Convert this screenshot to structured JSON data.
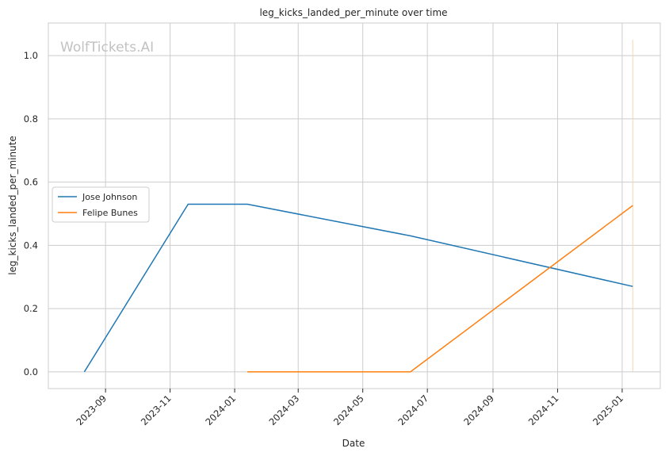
{
  "chart_data": {
    "type": "line",
    "title": "leg_kicks_landed_per_minute over time",
    "xlabel": "Date",
    "ylabel": "leg_kicks_landed_per_minute",
    "watermark": "WolfTickets.AI",
    "x_range": [
      "2023-07-09",
      "2025-02-06"
    ],
    "ylim": [
      -0.053,
      1.103
    ],
    "x_ticks": [
      "2023-09",
      "2023-11",
      "2024-01",
      "2024-03",
      "2024-05",
      "2024-07",
      "2024-09",
      "2024-11",
      "2025-01"
    ],
    "y_ticks": [
      "0.0",
      "0.2",
      "0.4",
      "0.6",
      "0.8",
      "1.0"
    ],
    "grid": true,
    "legend": "center-left",
    "series": [
      {
        "name": "Jose Johnson",
        "color": "#1f77b4",
        "points": [
          {
            "x": "2023-08-12",
            "y": 0.0
          },
          {
            "x": "2023-11-18",
            "y": 0.53
          },
          {
            "x": "2024-01-13",
            "y": 0.53
          },
          {
            "x": "2024-06-15",
            "y": 0.43
          },
          {
            "x": "2025-01-11",
            "y": 0.27
          }
        ]
      },
      {
        "name": "Felipe Bunes",
        "color": "#ff7f0e",
        "points": [
          {
            "x": "2024-01-13",
            "y": 0.0
          },
          {
            "x": "2024-06-15",
            "y": 0.0
          },
          {
            "x": "2025-01-11",
            "y": 0.526
          }
        ]
      }
    ],
    "vline": {
      "x": "2025-01-11",
      "y_range": [
        0.0,
        1.05
      ],
      "color": "#f5d6b4"
    }
  }
}
